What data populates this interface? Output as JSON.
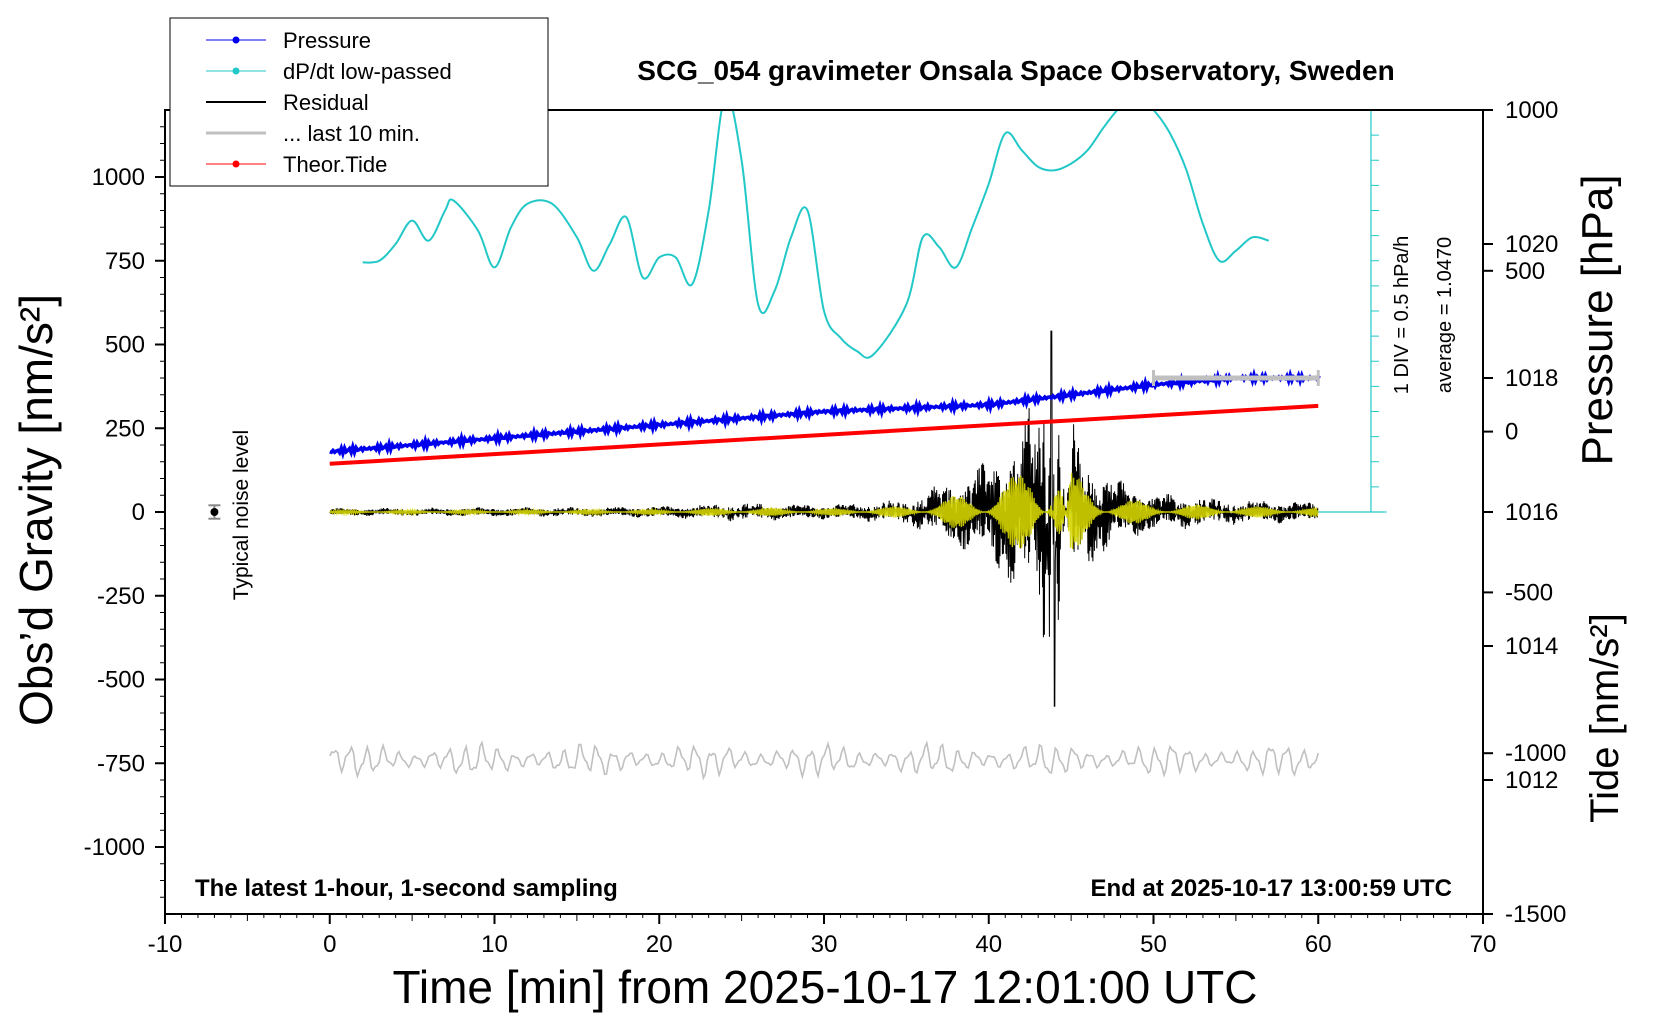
{
  "chart_data": {
    "type": "line",
    "title": "SCG_054 gravimeter Onsala Space Observatory, Sweden",
    "xlabel": "Time [min] from 2025-10-17 12:01:00 UTC",
    "ylabel_left": "Obs’d Gravity [nm/s²]",
    "ylabel_right_top": "Pressure [hPa]",
    "ylabel_right_bottom": "Tide [nm/s²]",
    "xlim": [
      -10,
      70
    ],
    "ylim_left": [
      -1200,
      1200
    ],
    "pressure_lim": [
      1010,
      1022
    ],
    "tide_lim": [
      -1500,
      1000
    ],
    "x_ticks": [
      -10,
      0,
      10,
      20,
      30,
      40,
      50,
      60,
      70
    ],
    "x_tick_labels": [
      "-10",
      "0",
      "10",
      "20",
      "30",
      "40",
      "50",
      "60",
      "70"
    ],
    "left_ticks": [
      1000,
      750,
      500,
      250,
      0,
      -250,
      -500,
      -750,
      -1000
    ],
    "left_tick_labels": [
      "1000",
      "750",
      "500",
      "250",
      "0",
      "-250",
      "-500",
      "-750",
      "-1000"
    ],
    "pressure_ticks": [
      1020,
      1018,
      1016,
      1014,
      1012
    ],
    "pressure_tick_labels": [
      "1020",
      "1018",
      "1016",
      "1014",
      "1012"
    ],
    "tide_ticks": [
      1000,
      500,
      0,
      -500,
      -1000,
      -1500
    ],
    "tide_tick_labels": [
      "1000",
      "500",
      "0",
      "-500",
      "-1000",
      "-1500"
    ],
    "legend": {
      "placement": "top-left",
      "entries": [
        {
          "label": "Pressure",
          "color": "#0000ee",
          "marker": true
        },
        {
          "label": "dP/dt low-passed",
          "color": "#22c8c8",
          "marker": true
        },
        {
          "label": "Residual",
          "color": "#000000",
          "marker": false
        },
        {
          "label": "... last 10 min.",
          "color": "#c0c0c0",
          "marker": false
        },
        {
          "label": "Theor.Tide",
          "color": "#ff0000",
          "marker": true
        }
      ]
    },
    "annotations": {
      "left_bottom": "The latest 1-hour, 1-second sampling",
      "right_bottom": "End at 2025-10-17 13:00:59 UTC",
      "noise_label": "Typical noise level",
      "div_label": "1 DIV = 0.5 hPa/h",
      "average_label": "average = 1.0470"
    },
    "noise_level": {
      "x": -7,
      "y": 0,
      "err": 20
    },
    "ten_min_bar": {
      "x_start": 50,
      "x_end": 60,
      "y": 400
    },
    "series": [
      {
        "name": "Pressure",
        "axis": "pressure",
        "color": "#0000ee",
        "x": [
          0,
          10,
          20,
          30,
          40,
          50,
          55,
          60
        ],
        "values": [
          1016.9,
          1017.1,
          1017.3,
          1017.5,
          1017.6,
          1017.9,
          1018.0,
          1018.0
        ]
      },
      {
        "name": "dP/dt low-passed",
        "axis": "dpdt",
        "color": "#22c8c8",
        "x": [
          2,
          3,
          4,
          5,
          6,
          7,
          7.5,
          9,
          10,
          11,
          12,
          13.5,
          15,
          16,
          17,
          18,
          19,
          20,
          21,
          22,
          23,
          24,
          25,
          26,
          27,
          28,
          29,
          30,
          31,
          32,
          33,
          35,
          36,
          37,
          38,
          39,
          40,
          41,
          42,
          43,
          44,
          45,
          46,
          47,
          48,
          49,
          50,
          51,
          52,
          53,
          54,
          55,
          56,
          57
        ],
        "values": [
          745,
          750,
          800,
          870,
          810,
          900,
          930,
          840,
          730,
          850,
          920,
          920,
          820,
          720,
          800,
          880,
          700,
          760,
          760,
          680,
          900,
          1240,
          1050,
          620,
          660,
          820,
          900,
          600,
          520,
          480,
          470,
          620,
          820,
          790,
          730,
          850,
          980,
          1130,
          1080,
          1030,
          1020,
          1040,
          1080,
          1150,
          1210,
          1240,
          1200,
          1130,
          1020,
          860,
          750,
          780,
          820,
          810
        ]
      },
      {
        "name": "Residual",
        "axis": "left",
        "color": "#000000",
        "x": [
          0,
          10,
          20,
          25,
          30,
          35,
          38,
          40,
          42,
          43,
          43.8,
          44,
          45,
          46,
          48,
          50,
          55,
          60
        ],
        "amplitude": [
          12,
          14,
          18,
          30,
          22,
          40,
          110,
          160,
          270,
          380,
          540,
          -580,
          280,
          180,
          95,
          60,
          40,
          30
        ]
      },
      {
        "name": "... last 10 min.",
        "axis": "left",
        "color": "#c0c0c0",
        "x": [
          0,
          60
        ],
        "values": [
          -740,
          -740
        ],
        "amplitude": [
          55,
          55
        ]
      },
      {
        "name": "Theor.Tide",
        "axis": "tide",
        "color": "#ff0000",
        "x": [
          0,
          60
        ],
        "values": [
          -100,
          80
        ]
      }
    ]
  }
}
